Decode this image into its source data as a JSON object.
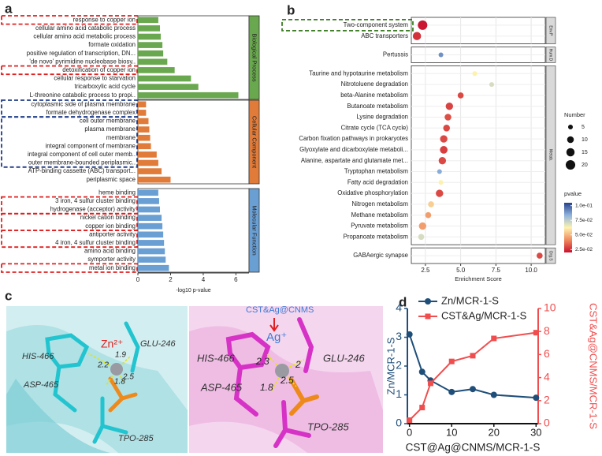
{
  "panel_labels": [
    "a",
    "b",
    "c",
    "d"
  ],
  "chart_data": [
    {
      "type": "barh",
      "xlabel": "-log10 p-value",
      "xlim": [
        0,
        6.8
      ],
      "xticks": [
        0,
        2,
        4,
        6
      ],
      "series": [
        {
          "name": "Biological Process",
          "color": "#6aa84f",
          "categories": [
            "response to copper ion",
            "cellular amino acid catabolic process",
            "cellular amino acid metabolic process",
            "formate oxidation",
            "positive regulation of transcription, DN...",
            "'de novo' pyrimidine nucleobase biosy..",
            "detoxification of copper ion",
            "cellular response to starvation",
            "tricarboxylic acid cycle",
            "L-threonine catabolic process to propi.."
          ],
          "values": [
            1.25,
            1.35,
            1.4,
            1.5,
            1.55,
            1.8,
            2.25,
            3.25,
            3.7,
            6.15
          ]
        },
        {
          "name": "Cellular Component",
          "color": "#e07b39",
          "categories": [
            "cytoplasmic side of plasma membrane",
            "formate dehydrogenase complex",
            "cell outer membrane",
            "plasma membrane",
            "membrane",
            "integral component of membrane",
            "integral component of cell outer memb..",
            "outer membrane-bounded periplasmic..",
            "ATP-binding cassette (ABC) transport...",
            "periplasmic space"
          ],
          "values": [
            0.5,
            0.5,
            0.65,
            0.7,
            0.75,
            0.8,
            1.15,
            1.25,
            1.45,
            2.0
          ]
        },
        {
          "name": "Molecular Function",
          "color": "#6a9fd4",
          "categories": [
            "heme binding",
            "3 iron, 4 sulfur cluster binding",
            "hydrogenase (acceptor) activity",
            "nickel cation binding",
            "copper ion binding",
            "antiporter activity",
            "4 iron, 4 sulfur cluster binding",
            "amino acid binding",
            "symporter activity",
            "metal ion binding"
          ],
          "values": [
            1.25,
            1.3,
            1.35,
            1.45,
            1.5,
            1.55,
            1.6,
            1.65,
            1.7,
            1.9
          ]
        }
      ]
    },
    {
      "type": "dot",
      "xlabel": "Enrichment Score",
      "xlim": [
        1.5,
        11
      ],
      "xticks": [
        2.5,
        {
          "value": 5,
          "label": "5.0"
        },
        7.5,
        {
          "value": 10,
          "label": "10.0"
        }
      ],
      "grid": true,
      "series": [
        {
          "name": "Env.P",
          "categories": [
            "Two-component system",
            "ABC transporters"
          ],
          "values": [
            2.3,
            1.9
          ],
          "sizes": [
            20,
            15
          ],
          "pvalues": [
            0.021,
            0.026
          ]
        },
        {
          "name": "Hum.D",
          "categories": [
            "Pertussis"
          ],
          "values": [
            3.6
          ],
          "sizes": [
            5
          ],
          "pvalues": [
            0.09
          ]
        },
        {
          "name": "Metab.",
          "categories": [
            "Taurine and hypotaurine metabolism",
            "Nitrotoluene degradation",
            "beta-Alanine metabolism",
            "Butanoate metabolism",
            "Lysine degradation",
            "Citrate cycle (TCA cycle)",
            "Carbon fixation pathways in prokaryotes",
            "Glyoxylate and dicarboxylate metaboli...",
            "Alanine, aspartate and glutamate met...",
            "Tryptophan metabolism",
            "Fatty acid degradation",
            "Oxidative phosphorylation",
            "Nitrogen metabolism",
            "Methane metabolism",
            "Pyruvate metabolism",
            "Propanoate metabolism"
          ],
          "values": [
            6.0,
            7.2,
            5.0,
            4.2,
            4.1,
            4.0,
            3.8,
            3.8,
            3.7,
            3.5,
            3.6,
            3.5,
            2.9,
            2.7,
            2.3,
            2.2
          ],
          "sizes": [
            5,
            5,
            8,
            12,
            10,
            10,
            12,
            13,
            12,
            5,
            5,
            12,
            8,
            8,
            12,
            8
          ],
          "pvalues": [
            0.062,
            0.07,
            0.03,
            0.029,
            0.031,
            0.03,
            0.03,
            0.028,
            0.03,
            0.085,
            0.062,
            0.03,
            0.055,
            0.045,
            0.045,
            0.07
          ]
        },
        {
          "name": "Org.S",
          "categories": [
            "GABAergic synapse"
          ],
          "values": [
            10.6
          ],
          "sizes": [
            8
          ],
          "pvalues": [
            0.03
          ]
        }
      ],
      "size_legend": {
        "title": "Number",
        "values": [
          5,
          10,
          15,
          20
        ]
      },
      "color_legend": {
        "title": "pvalue",
        "lim": [
          0.02,
          0.105
        ],
        "colors": [
          "#c8102e",
          "#f08a5d",
          "#fdf3b0",
          "#8fb3dd",
          "#27408b"
        ],
        "ticks": [
          {
            "value": 0.1,
            "label": "1.0e-01"
          },
          {
            "value": 0.075,
            "label": "7.5e-02"
          },
          {
            "value": 0.05,
            "label": "5.0e-02"
          },
          {
            "value": 0.025,
            "label": "2.5e-02"
          }
        ]
      }
    },
    {
      "type": "line",
      "xlabel": "CST@Ag@CNMS/MCR-1-S",
      "ylabel": "Zn/MCR-1-S",
      "y2label": "CST&Ag@CNMS/MCR-1-S",
      "x": [
        0,
        3,
        5,
        10,
        15,
        20,
        30
      ],
      "xlim": [
        -0.5,
        30.5
      ],
      "xticks": [
        0,
        10,
        20,
        30
      ],
      "ylim": [
        0,
        4
      ],
      "yticks": [
        0,
        1,
        2,
        3,
        4
      ],
      "y2lim": [
        0,
        10
      ],
      "y2ticks": [
        0,
        2,
        4,
        6,
        8,
        10
      ],
      "series": [
        {
          "name": "Zn/MCR-1-S",
          "color": "#1f4e79",
          "values": [
            3.1,
            1.8,
            1.5,
            1.1,
            1.2,
            1.0,
            0.9
          ]
        },
        {
          "name": "CST&Ag/MCR-1-S",
          "color": "#f04e4e",
          "axis": "y2",
          "values": [
            0.3,
            1.4,
            3.5,
            5.4,
            5.9,
            7.4,
            7.9
          ]
        }
      ]
    }
  ],
  "panel_c": {
    "left": {
      "ion": "Zn²⁺",
      "residues": [
        "HIS-466",
        "GLU-246",
        "ASP-465",
        "TPO-285"
      ],
      "distances": [
        1.9,
        2.2,
        2.5,
        1.8
      ]
    },
    "right": {
      "label": "CST&Ag@CNMS",
      "ion": "Ag⁺",
      "residues": [
        "HIS-466",
        "GLU-246",
        "ASP-465",
        "TPO-285"
      ],
      "distances": [
        2.3,
        2.0,
        1.8,
        2.5
      ]
    }
  }
}
